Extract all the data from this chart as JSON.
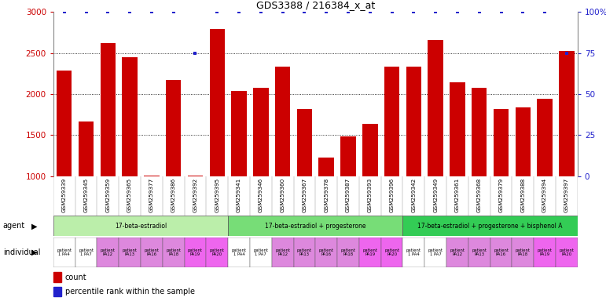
{
  "title": "GDS3388 / 216384_x_at",
  "samples": [
    "GSM259339",
    "GSM259345",
    "GSM259359",
    "GSM259365",
    "GSM259377",
    "GSM259386",
    "GSM259392",
    "GSM259395",
    "GSM259341",
    "GSM259346",
    "GSM259360",
    "GSM259367",
    "GSM259378",
    "GSM259387",
    "GSM259393",
    "GSM259396",
    "GSM259342",
    "GSM259349",
    "GSM259361",
    "GSM259368",
    "GSM259379",
    "GSM259388",
    "GSM259394",
    "GSM259397"
  ],
  "counts": [
    2290,
    1670,
    2620,
    2450,
    1010,
    2170,
    1010,
    2790,
    2040,
    2080,
    2330,
    1820,
    1230,
    1480,
    1640,
    2330,
    2330,
    2660,
    2140,
    2080,
    1820,
    1840,
    1940,
    2530
  ],
  "percentile_ranks": [
    100,
    100,
    100,
    100,
    100,
    100,
    75,
    100,
    100,
    100,
    100,
    100,
    100,
    100,
    100,
    100,
    100,
    100,
    100,
    100,
    100,
    100,
    100,
    75
  ],
  "bar_color": "#cc0000",
  "dot_color": "#2222cc",
  "ylim_left": [
    1000,
    3000
  ],
  "ylim_right": [
    0,
    100
  ],
  "yticks_left": [
    1000,
    1500,
    2000,
    2500,
    3000
  ],
  "yticks_right": [
    0,
    25,
    50,
    75,
    100
  ],
  "ytick_labels_left": [
    "1000",
    "1500",
    "2000",
    "2500",
    "3000"
  ],
  "ytick_labels_right": [
    "0",
    "25",
    "50",
    "75",
    "100%"
  ],
  "grid_values": [
    1500,
    2000,
    2500
  ],
  "agent_groups": [
    {
      "label": "17-beta-estradiol",
      "start": 0,
      "end": 8,
      "color": "#bbeeaa"
    },
    {
      "label": "17-beta-estradiol + progesterone",
      "start": 8,
      "end": 16,
      "color": "#77dd77"
    },
    {
      "label": "17-beta-estradiol + progesterone + bisphenol A",
      "start": 16,
      "end": 24,
      "color": "#33cc55"
    }
  ],
  "individual_labels": [
    "patient\n1 PA4",
    "patient\n1 PA7",
    "patient\nPA12",
    "patient\nPA13",
    "patient\nPA16",
    "patient\nPA18",
    "patient\nPA19",
    "patient\nPA20",
    "patient\n1 PA4",
    "patient\n1 PA7",
    "patient\nPA12",
    "patient\nPA13",
    "patient\nPA16",
    "patient\nPA18",
    "patient\nPA19",
    "patient\nPA20",
    "patient\n1 PA4",
    "patient\n1 PA7",
    "patient\nPA12",
    "patient\nPA13",
    "patient\nPA16",
    "patient\nPA18",
    "patient\nPA19",
    "patient\nPA20"
  ],
  "individual_colors": [
    "#ffffff",
    "#ffffff",
    "#dd88dd",
    "#dd88dd",
    "#dd88dd",
    "#dd88dd",
    "#ee66ee",
    "#ee66ee",
    "#ffffff",
    "#ffffff",
    "#dd88dd",
    "#dd88dd",
    "#dd88dd",
    "#dd88dd",
    "#ee66ee",
    "#ee66ee",
    "#ffffff",
    "#ffffff",
    "#dd88dd",
    "#dd88dd",
    "#dd88dd",
    "#dd88dd",
    "#ee66ee",
    "#ee66ee"
  ],
  "bg_color": "#ffffff",
  "tick_color_left": "#cc0000",
  "tick_color_right": "#2222cc",
  "xtick_bg": "#cccccc"
}
